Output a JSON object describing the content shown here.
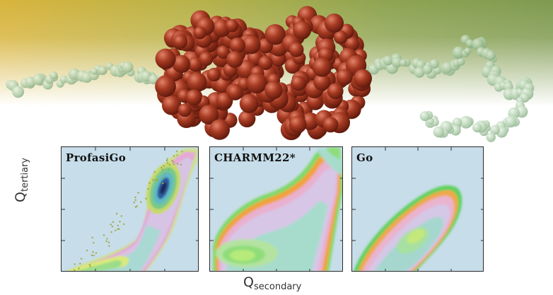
{
  "panels": [
    {
      "id": "profasigo",
      "title": "ProfasiGo"
    },
    {
      "id": "charmm22",
      "title": "CHARMM22*"
    },
    {
      "id": "go",
      "title": "Go"
    }
  ],
  "axes": {
    "y_label_main": "Q",
    "y_label_sub": "tertiary",
    "x_label_main": "Q",
    "x_label_sub": "secondary"
  },
  "colors": {
    "panel_background": "#c7dde9",
    "protein": "#9b3520",
    "unfolded_chain": "#a8caa8",
    "band_yellow": "#d9b640",
    "band_green": "#7f9c52"
  }
}
